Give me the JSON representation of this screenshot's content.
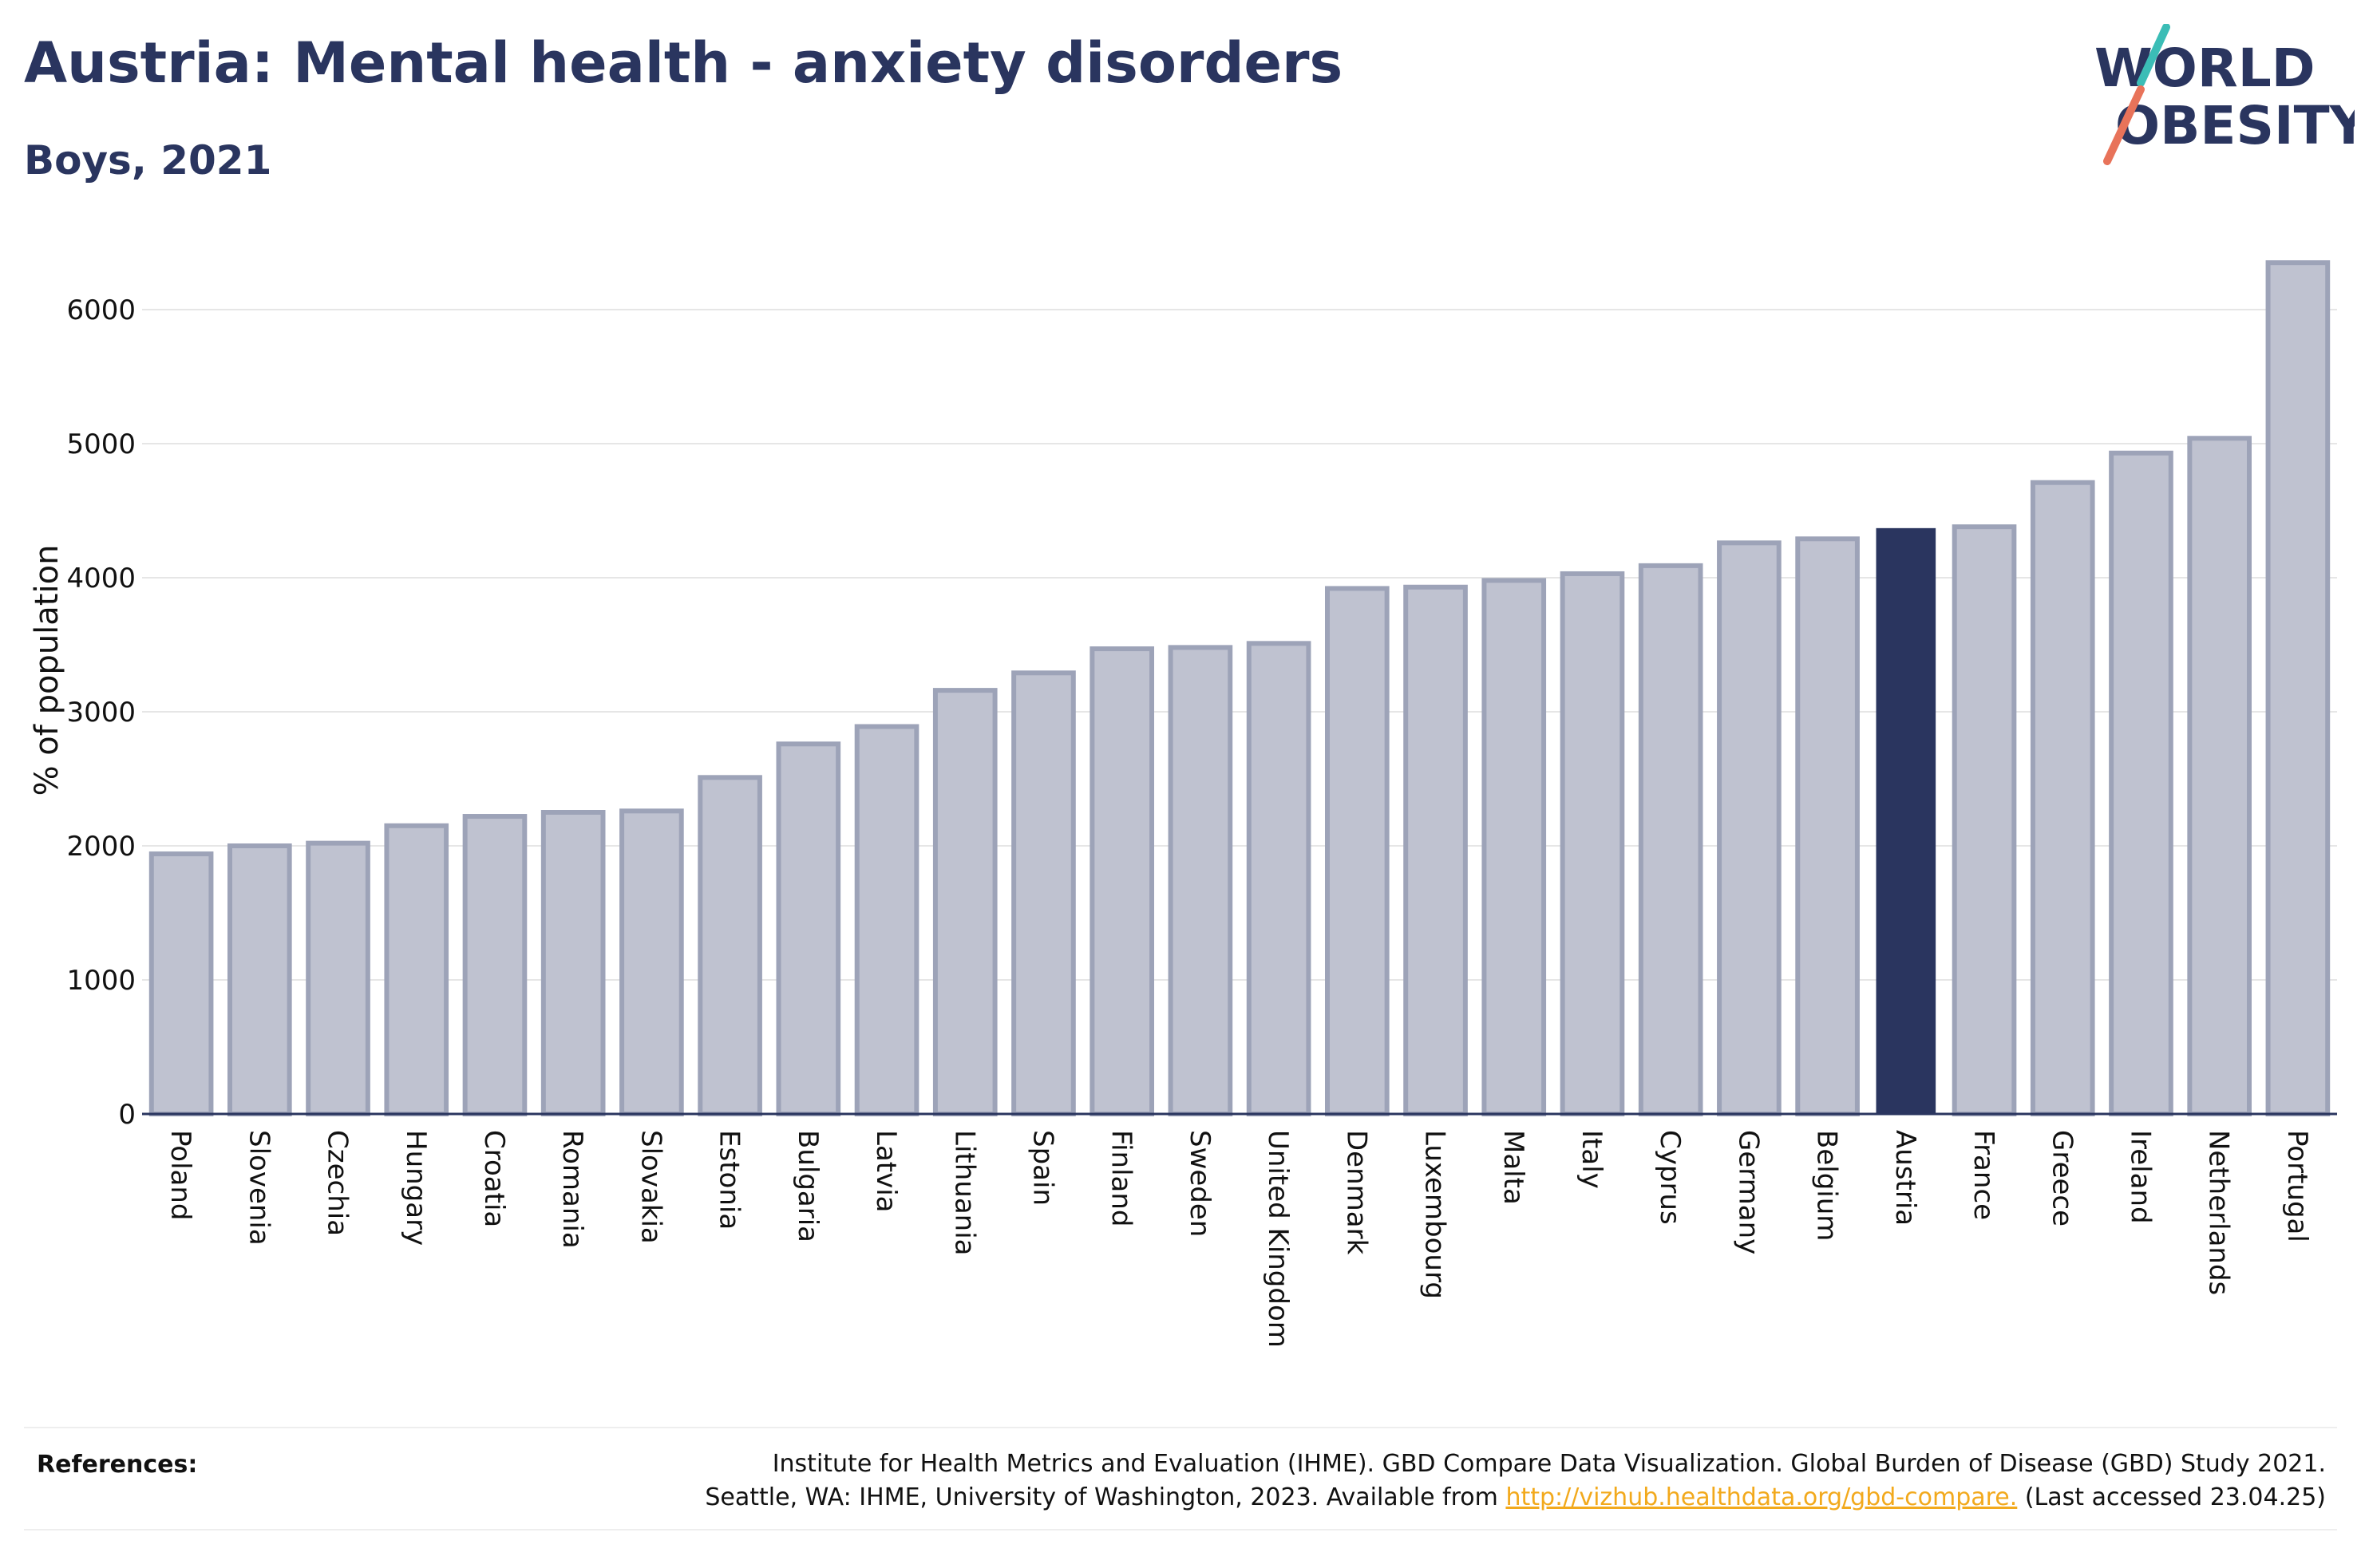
{
  "header": {
    "title": "Austria: Mental health - anxiety disorders",
    "subtitle": "Boys, 2021"
  },
  "logo": {
    "line1": "WORLD",
    "line2": "OBESITY",
    "name": "world-obesity-logo"
  },
  "colors": {
    "highlight": "#2a355f",
    "bar": "#bfc2d0",
    "bar_border": "#9da3b8",
    "grid": "#e6e6e6",
    "axis": "#2a355f",
    "link": "#f2a91c",
    "logo_teal": "#3bbdb6",
    "logo_coral": "#e8735a"
  },
  "chart_data": {
    "type": "bar",
    "categories": [
      "Poland",
      "Slovenia",
      "Czechia",
      "Hungary",
      "Croatia",
      "Romania",
      "Slovakia",
      "Estonia",
      "Bulgaria",
      "Latvia",
      "Lithuania",
      "Spain",
      "Finland",
      "Sweden",
      "United Kingdom",
      "Denmark",
      "Luxembourg",
      "Malta",
      "Italy",
      "Cyprus",
      "Germany",
      "Belgium",
      "Austria",
      "France",
      "Greece",
      "Ireland",
      "Netherlands",
      "Portugal"
    ],
    "values": [
      1940,
      2000,
      2020,
      2150,
      2220,
      2250,
      2260,
      2510,
      2760,
      2890,
      3160,
      3290,
      3470,
      3480,
      3510,
      3920,
      3930,
      3980,
      4030,
      4090,
      4260,
      4290,
      4370,
      4380,
      4710,
      4930,
      5040,
      6350
    ],
    "highlight": "Austria",
    "ylabel": "% of population",
    "yticks": [
      0,
      1000,
      2000,
      3000,
      4000,
      5000,
      6000
    ],
    "ylim": [
      0,
      6600
    ],
    "grid": true,
    "legend": "none"
  },
  "references": {
    "label": "References:",
    "line1": "Institute for Health Metrics and Evaluation (IHME). GBD Compare Data Visualization. Global Burden of Disease (GBD) Study 2021.",
    "line2_prefix": "Seattle, WA: IHME, University of Washington, 2023. Available from",
    "link": "http://vizhub.healthdata.org/gbd-compare.",
    "line2_suffix": "(Last accessed 23.04.25)"
  }
}
